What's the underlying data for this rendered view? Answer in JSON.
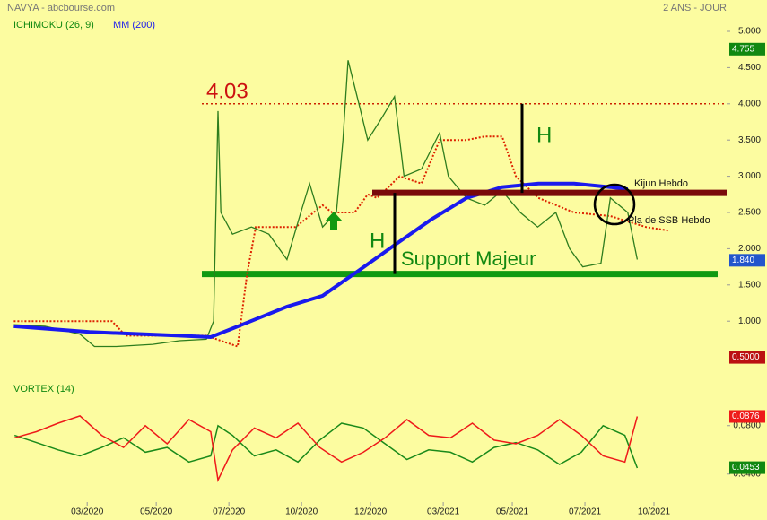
{
  "header": {
    "title": "NAVYA - abcbourse.com",
    "period": "2 ANS - JOUR"
  },
  "chart_data": [
    {
      "type": "line",
      "xlim": [
        0,
        100
      ],
      "xticks": [
        {
          "value": 12,
          "label": "03/2020"
        },
        {
          "value": 21.5,
          "label": "05/2020"
        },
        {
          "value": 31.5,
          "label": "07/2020"
        },
        {
          "value": 41.5,
          "label": "10/2020"
        },
        {
          "value": 51,
          "label": "12/2020"
        },
        {
          "value": 61,
          "label": "03/2021"
        },
        {
          "value": 70.5,
          "label": "05/2021"
        },
        {
          "value": 80.5,
          "label": "07/2021"
        },
        {
          "value": 90,
          "label": "10/2021"
        }
      ],
      "ylim": [
        0.5,
        5.0
      ],
      "yticks": [
        {
          "value": 1,
          "label": "1.000"
        },
        {
          "value": 1.5,
          "label": "1.500"
        },
        {
          "value": 2,
          "label": "2.000"
        },
        {
          "value": 2.5,
          "label": "2.500"
        },
        {
          "value": 3,
          "label": "3.000"
        },
        {
          "value": 3.5,
          "label": "3.500"
        },
        {
          "value": 4,
          "label": "4.000"
        },
        {
          "value": 4.5,
          "label": "4.500"
        },
        {
          "value": 5,
          "label": "5.000"
        }
      ],
      "price": {
        "color": "#2e7d1e",
        "x": [
          1.9,
          6.2,
          11,
          13,
          16,
          21,
          24.7,
          28.4,
          29.4,
          30,
          30.4,
          32,
          34.6,
          37,
          39.5,
          41.4,
          42.6,
          44.4,
          46.3,
          47.2,
          47.9,
          49.4,
          50.6,
          52.5,
          54.3,
          55.6,
          58,
          60.5,
          61.7,
          64.2,
          66.7,
          69.1,
          71.6,
          74,
          76.5,
          78.4,
          80.2,
          82.7,
          84,
          85.2,
          86.4,
          87.7
        ],
        "values": [
          0.95,
          0.93,
          0.82,
          0.65,
          0.65,
          0.68,
          0.73,
          0.75,
          1.0,
          3.9,
          2.5,
          2.2,
          2.3,
          2.2,
          1.85,
          2.5,
          2.9,
          2.3,
          2.5,
          3.5,
          4.6,
          4.0,
          3.5,
          3.8,
          4.1,
          3.0,
          3.1,
          3.6,
          3.0,
          2.7,
          2.6,
          2.8,
          2.5,
          2.3,
          2.5,
          2.0,
          1.75,
          1.8,
          2.7,
          2.6,
          2.5,
          1.85
        ]
      },
      "series": [
        {
          "name": "ICHIMOKU (26, 9)",
          "color": "#dd2200",
          "x": [
            1.9,
            15.4,
            17.3,
            28.4,
            32.7,
            34,
            35.2,
            40.7,
            44.4,
            45.7,
            48.8,
            50.6,
            51.9,
            55,
            58,
            60.5,
            64.2,
            66.7,
            69.1,
            71,
            74.1,
            79,
            84,
            88.9,
            92
          ],
          "values": [
            1.0,
            1.0,
            0.8,
            0.8,
            0.65,
            1.65,
            2.3,
            2.3,
            2.6,
            2.5,
            2.5,
            2.75,
            2.7,
            3.0,
            2.9,
            3.5,
            3.5,
            3.55,
            3.55,
            3.0,
            2.7,
            2.5,
            2.45,
            2.3,
            2.25
          ]
        },
        {
          "name": "MM (200)",
          "color": "#1a1aee",
          "x": [
            1.9,
            12.3,
            24.7,
            29,
            33.3,
            39.5,
            44.4,
            49.4,
            54.3,
            59.3,
            64.2,
            69.1,
            74.1,
            79,
            84,
            86.4
          ],
          "values": [
            0.93,
            0.85,
            0.8,
            0.78,
            0.95,
            1.2,
            1.35,
            1.7,
            2.05,
            2.4,
            2.7,
            2.85,
            2.9,
            2.9,
            2.85,
            2.82
          ]
        }
      ],
      "price_tags": [
        {
          "value": 4.755,
          "label": "4.755",
          "color": "#118811"
        },
        {
          "value": 1.84,
          "label": "1.840",
          "color": "#2255cc"
        },
        {
          "value": 0.5,
          "label": "0.5000",
          "color": "#bb1111"
        }
      ],
      "levels": {
        "resistance": 4.0,
        "kijun": 2.77,
        "support": 1.65
      },
      "annotations": [
        "4.03",
        "H",
        "H",
        "Support Majeur",
        "Kijun Hebdo",
        "Pla de SSB Hebdo"
      ]
    },
    {
      "type": "line",
      "title": "VORTEX (14)",
      "xlim": [
        0,
        100
      ],
      "ylim": [
        0.025,
        0.105
      ],
      "yticks": [
        {
          "value": 0.04,
          "label": "0.0400"
        },
        {
          "value": 0.08,
          "label": "0.0800"
        }
      ],
      "x": [
        2,
        5,
        8,
        11,
        14,
        17,
        20,
        23,
        26,
        29,
        30,
        32,
        35,
        38,
        41,
        44,
        47,
        50,
        53,
        56,
        59,
        62,
        65,
        68,
        71,
        74,
        77,
        80,
        83,
        86,
        87.7
      ],
      "series": [
        {
          "color": "#1a8a1a",
          "values": [
            0.072,
            0.066,
            0.06,
            0.055,
            0.062,
            0.07,
            0.058,
            0.062,
            0.05,
            0.055,
            0.08,
            0.072,
            0.055,
            0.06,
            0.05,
            0.068,
            0.082,
            0.078,
            0.065,
            0.052,
            0.06,
            0.058,
            0.05,
            0.062,
            0.066,
            0.06,
            0.048,
            0.058,
            0.08,
            0.072,
            0.045
          ]
        },
        {
          "color": "#ee1a1a",
          "values": [
            0.07,
            0.075,
            0.082,
            0.088,
            0.072,
            0.062,
            0.08,
            0.065,
            0.085,
            0.075,
            0.035,
            0.06,
            0.078,
            0.07,
            0.082,
            0.062,
            0.05,
            0.058,
            0.07,
            0.085,
            0.072,
            0.07,
            0.082,
            0.068,
            0.065,
            0.072,
            0.085,
            0.072,
            0.055,
            0.05,
            0.0876
          ]
        }
      ],
      "tags": [
        {
          "value": 0.0876,
          "label": "0.0876",
          "color": "#ee1a1a"
        },
        {
          "value": 0.0453,
          "label": "0.0453",
          "color": "#118811"
        }
      ]
    }
  ]
}
